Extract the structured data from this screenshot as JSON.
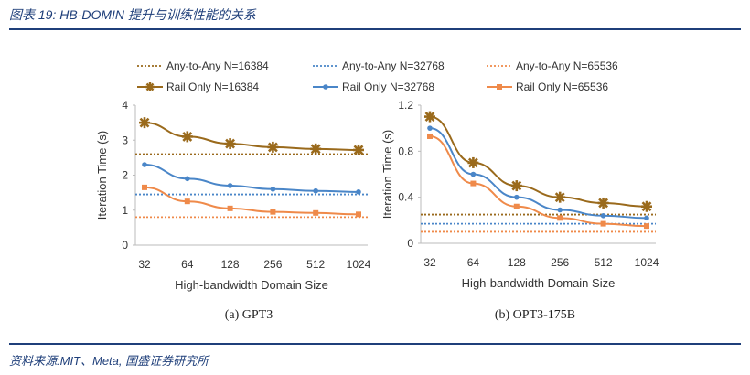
{
  "header": {
    "title": "图表 19:  HB-DOMIN 提升与训练性能的关系"
  },
  "footer": {
    "source": "资料来源:MIT、Meta, 国盛证券研究所"
  },
  "legend": {
    "labels": [
      "Any-to-Any N=16384",
      "Any-to-Any N=32768",
      "Any-to-Any N=65536",
      "Rail Only N=16384",
      "Rail Only N=32768",
      "Rail Only N=65536"
    ],
    "colors": [
      "#9a6a1c",
      "#4a86c8",
      "#ef8a4a"
    ]
  },
  "chart_data": [
    {
      "type": "line",
      "caption": "(a) GPT3",
      "xlabel": "High-bandwidth Domain Size",
      "ylabel": "Iteration Time (s)",
      "categories": [
        "32",
        "64",
        "128",
        "256",
        "512",
        "1024"
      ],
      "ylim": [
        0,
        4
      ],
      "yticks": [
        "0",
        "1",
        "2",
        "3",
        "4"
      ],
      "series": [
        {
          "name": "Rail Only N=16384",
          "values": [
            3.5,
            3.1,
            2.9,
            2.8,
            2.75,
            2.72
          ]
        },
        {
          "name": "Rail Only N=32768",
          "values": [
            2.3,
            1.9,
            1.7,
            1.6,
            1.55,
            1.52
          ]
        },
        {
          "name": "Rail Only N=65536",
          "values": [
            1.65,
            1.25,
            1.05,
            0.95,
            0.92,
            0.88
          ]
        }
      ],
      "reference_lines": [
        {
          "name": "Any-to-Any N=16384",
          "value": 2.6
        },
        {
          "name": "Any-to-Any N=32768",
          "value": 1.45
        },
        {
          "name": "Any-to-Any N=65536",
          "value": 0.8
        }
      ]
    },
    {
      "type": "line",
      "caption": "(b) OPT3-175B",
      "xlabel": "High-bandwidth Domain Size",
      "ylabel": "Iteration Time (s)",
      "categories": [
        "32",
        "64",
        "128",
        "256",
        "512",
        "1024"
      ],
      "ylim": [
        0,
        1.2
      ],
      "yticks": [
        "0",
        "0.4",
        "0.8",
        "1.2"
      ],
      "series": [
        {
          "name": "Rail Only N=16384",
          "values": [
            1.1,
            0.7,
            0.5,
            0.4,
            0.35,
            0.32
          ]
        },
        {
          "name": "Rail Only N=32768",
          "values": [
            1.0,
            0.6,
            0.4,
            0.29,
            0.24,
            0.22
          ]
        },
        {
          "name": "Rail Only N=65536",
          "values": [
            0.93,
            0.52,
            0.32,
            0.22,
            0.17,
            0.15
          ]
        }
      ],
      "reference_lines": [
        {
          "name": "Any-to-Any N=16384",
          "value": 0.25
        },
        {
          "name": "Any-to-Any N=32768",
          "value": 0.17
        },
        {
          "name": "Any-to-Any N=65536",
          "value": 0.1
        }
      ]
    }
  ]
}
